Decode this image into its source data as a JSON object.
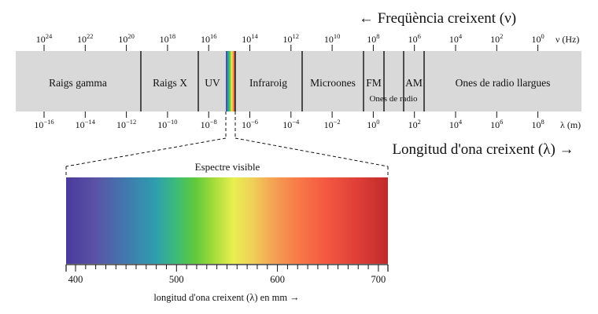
{
  "frequency_arrow_label": "← Freqüència creixent (ν)",
  "wavelength_arrow_label": "Longitud d'ona creixent (λ) →",
  "frequency_unit": "ν (Hz)",
  "wavelength_unit": "λ (m)",
  "frequency_ticks": [
    {
      "base": "10",
      "exp": "24"
    },
    {
      "base": "10",
      "exp": "22"
    },
    {
      "base": "10",
      "exp": "20"
    },
    {
      "base": "10",
      "exp": "18"
    },
    {
      "base": "10",
      "exp": "16"
    },
    {
      "base": "10",
      "exp": "14"
    },
    {
      "base": "10",
      "exp": "12"
    },
    {
      "base": "10",
      "exp": "10"
    },
    {
      "base": "10",
      "exp": "8"
    },
    {
      "base": "10",
      "exp": "6"
    },
    {
      "base": "10",
      "exp": "4"
    },
    {
      "base": "10",
      "exp": "2"
    },
    {
      "base": "10",
      "exp": "0"
    }
  ],
  "wavelength_ticks": [
    {
      "base": "10",
      "exp": "−16"
    },
    {
      "base": "10",
      "exp": "−14"
    },
    {
      "base": "10",
      "exp": "−12"
    },
    {
      "base": "10",
      "exp": "−10"
    },
    {
      "base": "10",
      "exp": "−8"
    },
    {
      "base": "10",
      "exp": "−6"
    },
    {
      "base": "10",
      "exp": "−4"
    },
    {
      "base": "10",
      "exp": "−2"
    },
    {
      "base": "10",
      "exp": "0"
    },
    {
      "base": "10",
      "exp": "2"
    },
    {
      "base": "10",
      "exp": "4"
    },
    {
      "base": "10",
      "exp": "6"
    },
    {
      "base": "10",
      "exp": "8"
    }
  ],
  "bands": {
    "gamma": "Raigs gamma",
    "xray": "Raigs X",
    "uv": "UV",
    "infrared": "Infraroig",
    "microwave": "Microones",
    "fm": "FM",
    "am": "AM",
    "radio": "Ones de radio",
    "long_radio": "Ones de radio llargues"
  },
  "visible": {
    "title": "Espectre visible",
    "axis_label": "longitud d'ona creixent (λ) en mm →",
    "tick_labels": [
      "400",
      "500",
      "600",
      "700"
    ]
  },
  "colors": {
    "band_background": "#d9d9d9",
    "divider": "#111111"
  }
}
